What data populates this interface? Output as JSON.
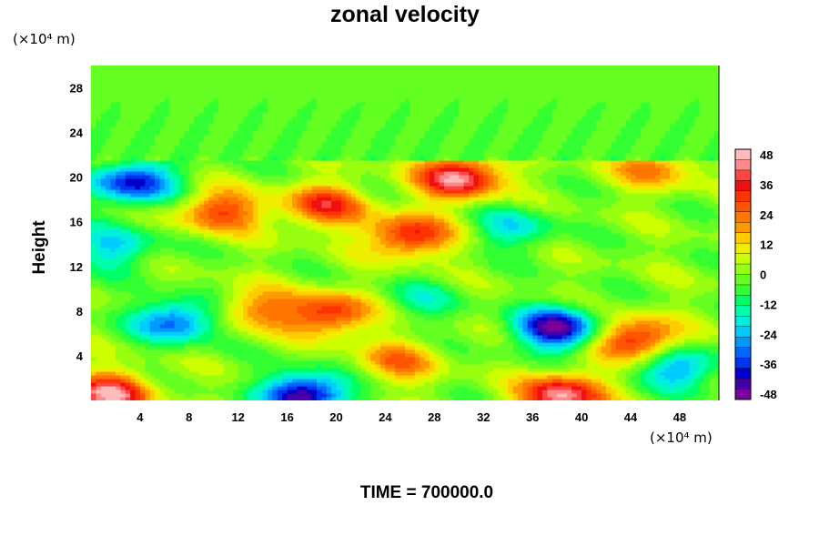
{
  "chart_data": {
    "type": "heatmap",
    "title": "zonal velocity",
    "xlabel": "",
    "ylabel": "Height",
    "x_unit": "(×10⁴ m)",
    "y_unit": "(×10⁴ m)",
    "x_ticks": [
      4,
      8,
      12,
      16,
      20,
      24,
      28,
      32,
      36,
      40,
      44,
      48
    ],
    "y_ticks": [
      4,
      8,
      12,
      16,
      20,
      24,
      28
    ],
    "xlim": [
      0,
      51.2
    ],
    "ylim": [
      0,
      30
    ],
    "colorbar": {
      "labels": [
        48,
        36,
        24,
        12,
        0,
        -12,
        -24,
        -36,
        -48
      ],
      "range": [
        -50,
        50
      ],
      "colors": [
        "#7a0099",
        "#4400a8",
        "#0000c8",
        "#0033ee",
        "#0066ff",
        "#0099ff",
        "#00ccff",
        "#00eedd",
        "#00ffaa",
        "#00ff66",
        "#33ff33",
        "#66ff22",
        "#99ff11",
        "#ccff00",
        "#eeee00",
        "#ffcc00",
        "#ff9900",
        "#ff7700",
        "#ff5500",
        "#ff3300",
        "#ee1111",
        "#ff4444",
        "#ff8888",
        "#ffbbbb"
      ]
    },
    "features": [
      {
        "x": 19.0,
        "y": 17.5,
        "value": 32
      },
      {
        "x": 10.5,
        "y": 17.0,
        "value": 30
      },
      {
        "x": 26.0,
        "y": 14.8,
        "value": 36
      },
      {
        "x": 19.5,
        "y": 7.8,
        "value": 34
      },
      {
        "x": 44.5,
        "y": 5.5,
        "value": 38
      },
      {
        "x": 13.5,
        "y": 8.2,
        "value": 22
      },
      {
        "x": 38.0,
        "y": 6.5,
        "value": -46
      },
      {
        "x": 7.0,
        "y": 7.2,
        "value": -34
      },
      {
        "x": 17.5,
        "y": 0.6,
        "value": -48
      },
      {
        "x": 38.5,
        "y": 0.5,
        "value": 46
      },
      {
        "x": 1.5,
        "y": 0.6,
        "value": 44
      },
      {
        "x": 30.0,
        "y": 20.0,
        "value": 46
      },
      {
        "x": 3.5,
        "y": 19.6,
        "value": -40
      },
      {
        "x": 46.0,
        "y": 20.9,
        "value": 22
      },
      {
        "x": 27.0,
        "y": 9.0,
        "value": -12
      },
      {
        "x": 34.5,
        "y": 15.5,
        "value": -18
      },
      {
        "x": 2.0,
        "y": 13.8,
        "value": -22
      },
      {
        "x": 48.0,
        "y": 3.0,
        "value": -28
      },
      {
        "x": 25.0,
        "y": 3.5,
        "value": 22
      },
      {
        "x": 12.0,
        "y": 22.5,
        "value": -3
      }
    ]
  },
  "footer": {
    "time_label": "TIME = 700000.0"
  }
}
